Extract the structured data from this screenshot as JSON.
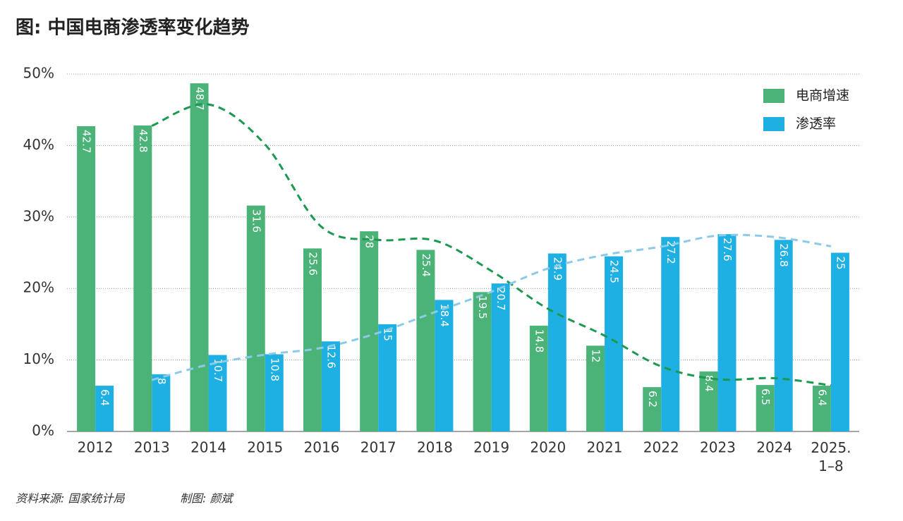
{
  "chart_data": {
    "type": "bar",
    "title": "图: 中国电商渗透率变化趋势",
    "source": "资料来源: 国家统计局",
    "credit": "制图: 颜斌",
    "categories": [
      "2012",
      "2013",
      "2014",
      "2015",
      "2016",
      "2017",
      "2018",
      "2019",
      "2020",
      "2021",
      "2022",
      "2023",
      "2024",
      "2025.\n1–8"
    ],
    "series": [
      {
        "name": "电商增速",
        "color": "#4bb378",
        "trend_color": "#1a9a50",
        "trendline": {
          "type": "moving_average",
          "period": 2
        },
        "values": [
          42.7,
          42.8,
          48.7,
          31.6,
          25.6,
          28,
          25.4,
          19.5,
          14.8,
          12,
          6.2,
          8.4,
          6.5,
          6.4
        ]
      },
      {
        "name": "渗透率",
        "color": "#1fb0e3",
        "trend_color": "#8ccbe8",
        "trendline": {
          "type": "moving_average",
          "period": 2
        },
        "values": [
          6.4,
          8,
          10.7,
          10.8,
          12.6,
          15,
          18.4,
          20.7,
          24.9,
          24.5,
          27.2,
          27.6,
          26.8,
          25
        ]
      }
    ],
    "ylim": [
      0,
      50
    ],
    "yticks": [
      {
        "value": 0,
        "label": "0%"
      },
      {
        "value": 10,
        "label": "10%"
      },
      {
        "value": 20,
        "label": "20%"
      },
      {
        "value": 30,
        "label": "30%"
      },
      {
        "value": 40,
        "label": "40%"
      },
      {
        "value": 50,
        "label": "50%"
      }
    ],
    "grid": true,
    "legend": "top-right"
  }
}
